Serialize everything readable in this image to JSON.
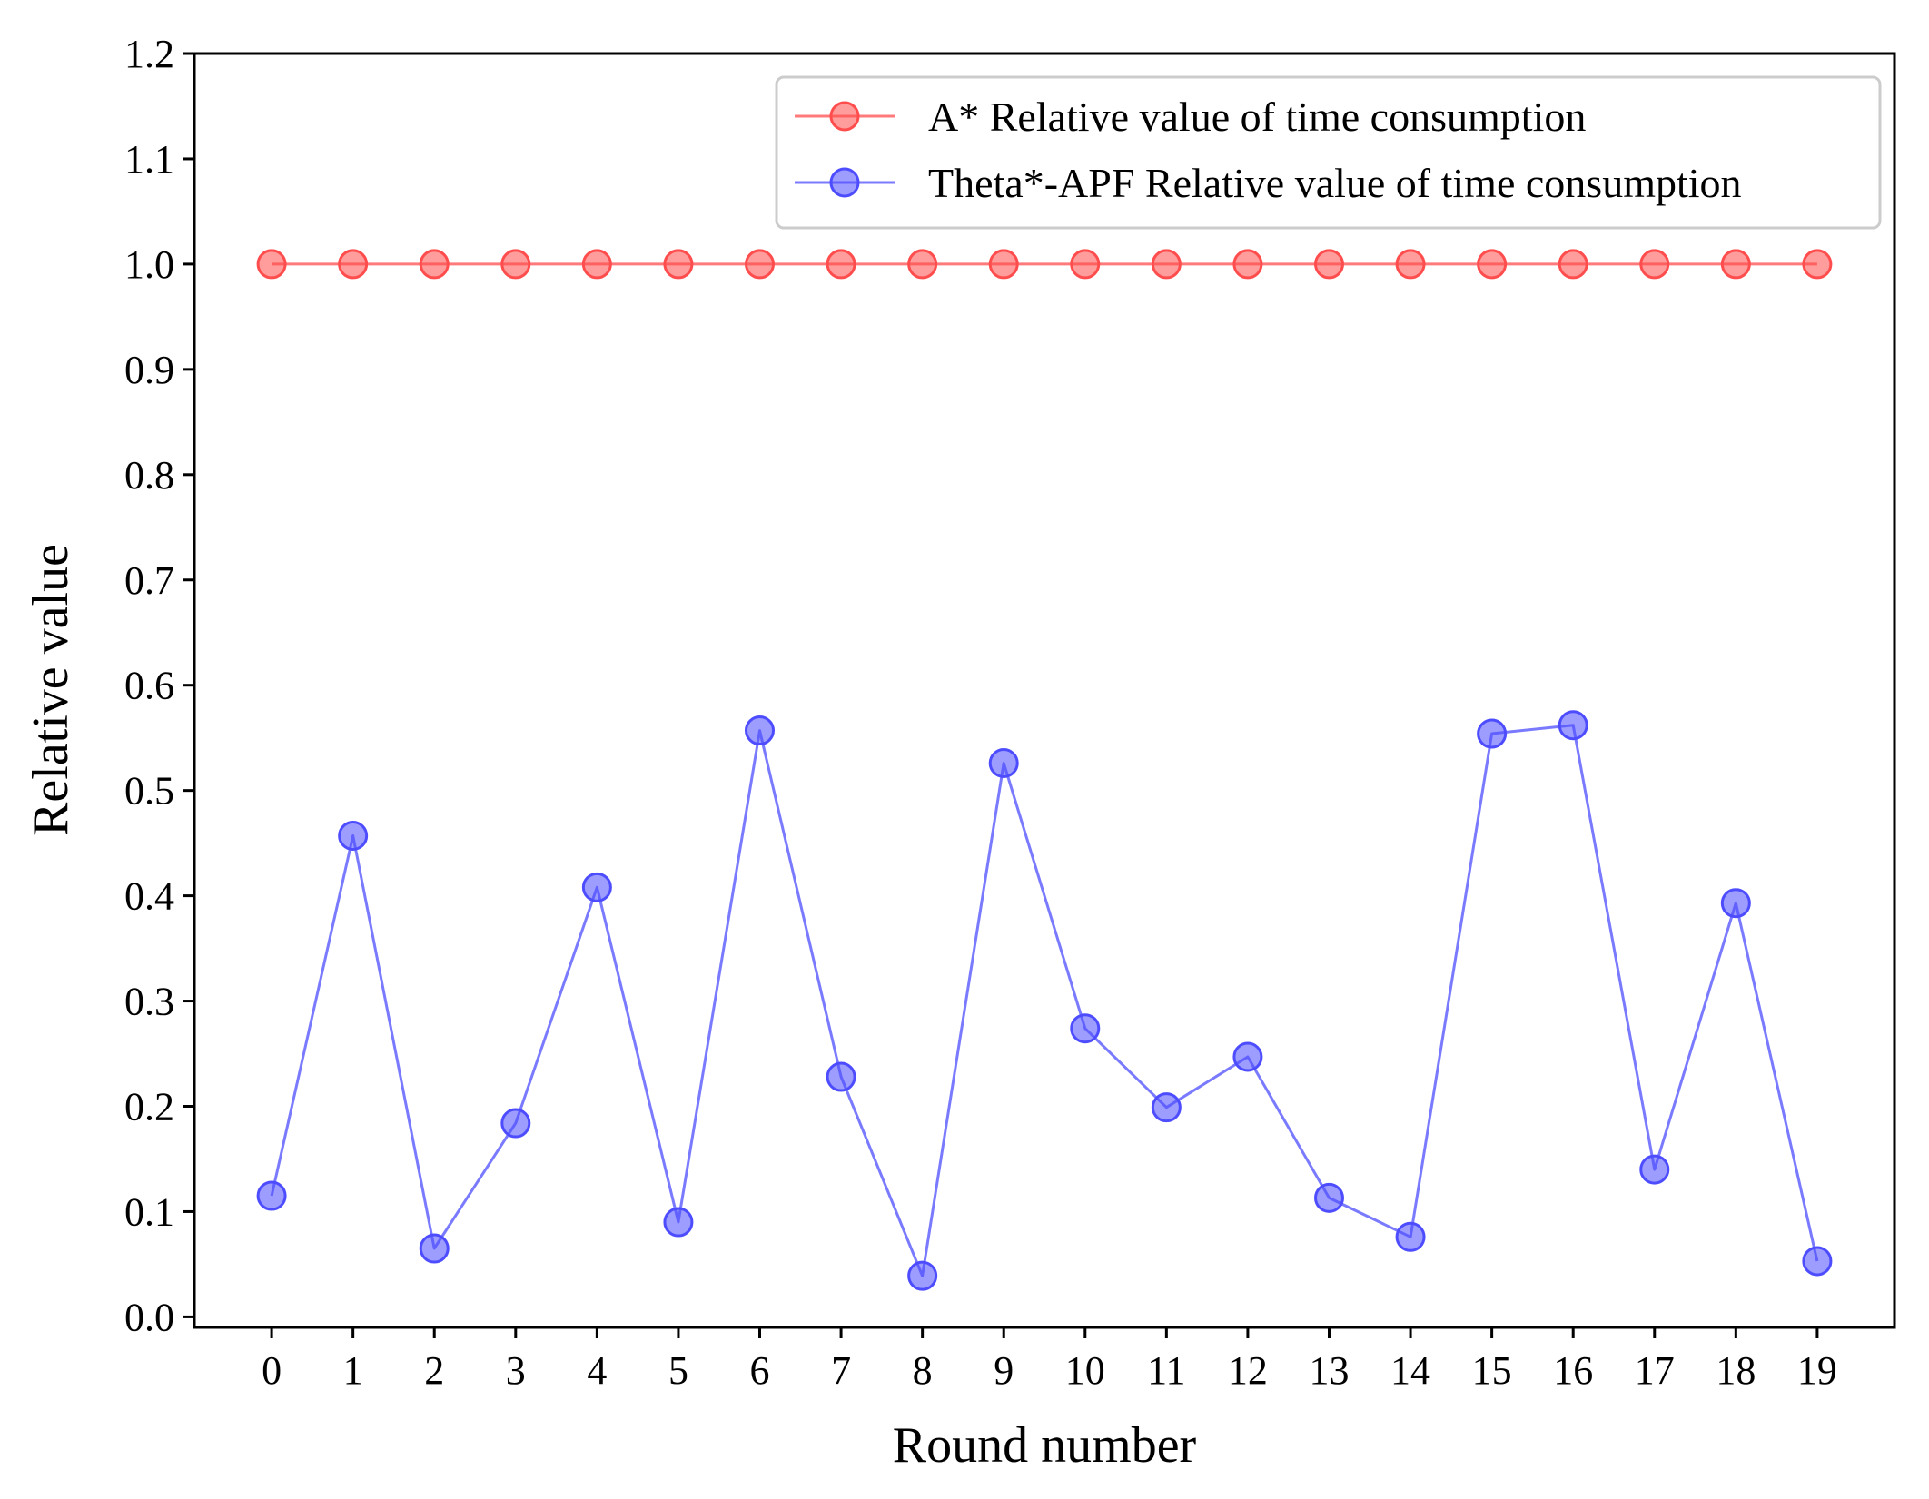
{
  "chart_data": {
    "type": "line",
    "title": "",
    "xlabel": "Round number",
    "ylabel": "Relative value",
    "x": [
      0,
      1,
      2,
      3,
      4,
      5,
      6,
      7,
      8,
      9,
      10,
      11,
      12,
      13,
      14,
      15,
      16,
      17,
      18,
      19
    ],
    "x_tick_labels": [
      "0",
      "1",
      "2",
      "3",
      "4",
      "5",
      "6",
      "7",
      "8",
      "9",
      "10",
      "11",
      "12",
      "13",
      "14",
      "15",
      "16",
      "17",
      "18",
      "19"
    ],
    "xlim": [
      -0.95,
      19.95
    ],
    "ylim": [
      -0.01,
      1.2
    ],
    "y_ticks": [
      0.0,
      0.1,
      0.2,
      0.3,
      0.4,
      0.5,
      0.6,
      0.7,
      0.8,
      0.9,
      1.0,
      1.1,
      1.2
    ],
    "y_tick_labels": [
      "0.0",
      "0.1",
      "0.2",
      "0.3",
      "0.4",
      "0.5",
      "0.6",
      "0.7",
      "0.8",
      "0.9",
      "1.0",
      "1.1",
      "1.2"
    ],
    "grid": false,
    "legend_position": "top-right",
    "series": [
      {
        "name": "A* Relative value of time consumption",
        "color": "#ff4d4d",
        "marker": "circle",
        "values": [
          1.0,
          1.0,
          1.0,
          1.0,
          1.0,
          1.0,
          1.0,
          1.0,
          1.0,
          1.0,
          1.0,
          1.0,
          1.0,
          1.0,
          1.0,
          1.0,
          1.0,
          1.0,
          1.0,
          1.0
        ]
      },
      {
        "name": "Theta*-APF Relative value of time consumption",
        "color": "#4d4dff",
        "marker": "circle",
        "values": [
          0.115,
          0.457,
          0.065,
          0.184,
          0.408,
          0.09,
          0.557,
          0.228,
          0.039,
          0.526,
          0.274,
          0.199,
          0.247,
          0.113,
          0.076,
          0.554,
          0.562,
          0.14,
          0.393,
          0.053
        ]
      }
    ]
  }
}
